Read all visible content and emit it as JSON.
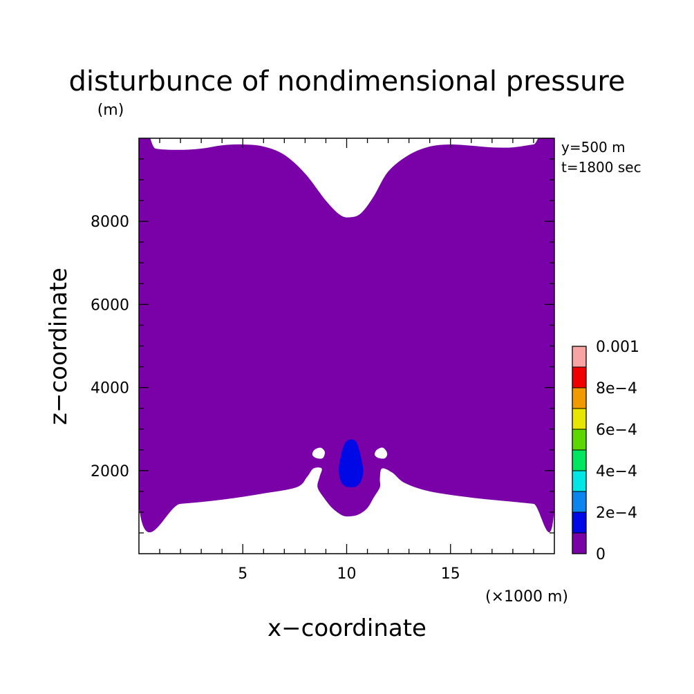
{
  "chart_data": {
    "type": "contour",
    "title": "disturbunce of nondimensional pressure",
    "units": "(m)",
    "annotations": [
      "y=500 m",
      "t=1800 sec"
    ],
    "xlabel": "x−coordinate",
    "ylabel": "z−coordinate",
    "x_unit_note": "(×1000 m)",
    "xlim": [
      0,
      20
    ],
    "ylim": [
      0,
      10000
    ],
    "x_ticks": [
      5,
      10,
      15
    ],
    "x_tick_labels": [
      "5",
      "10",
      "15"
    ],
    "y_ticks": [
      2000,
      4000,
      6000,
      8000
    ],
    "y_tick_labels": [
      "2000",
      "4000",
      "6000",
      "8000"
    ],
    "colorbar": {
      "levels": [
        0,
        0.0001,
        0.0002,
        0.0003,
        0.0004,
        0.0005,
        0.0006,
        0.0007,
        0.0008,
        0.0009,
        0.001
      ],
      "labels": [
        "0",
        "2e−4",
        "4e−4",
        "6e−4",
        "8e−4",
        "0.001"
      ],
      "label_levels": [
        0,
        0.0002,
        0.0004,
        0.0006,
        0.0008,
        0.001
      ],
      "colors": [
        "#7a00a8",
        "#0008e6",
        "#0a84ee",
        "#00e6e6",
        "#00e660",
        "#5ed600",
        "#e6e600",
        "#f09a00",
        "#f00000",
        "#f8a4a4"
      ]
    },
    "regions": [
      {
        "name": "0 to 1e-4",
        "color": "#7a00a8",
        "path": [
          [
            0,
            9900.0
          ],
          [
            0.8,
            9750.0
          ],
          [
            2,
            9720.0
          ],
          [
            3,
            9750.0
          ],
          [
            4,
            9830.0
          ],
          [
            5,
            9850.0
          ],
          [
            6,
            9800.0
          ],
          [
            7,
            9600.0
          ],
          [
            8,
            9150.0
          ],
          [
            9,
            8500.0
          ],
          [
            9.7,
            8150.0
          ],
          [
            10.2,
            8100.0
          ],
          [
            10.7,
            8200.0
          ],
          [
            11.3,
            8600.0
          ],
          [
            12,
            9200.0
          ],
          [
            13,
            9600.0
          ],
          [
            14,
            9800.0
          ],
          [
            15,
            9850.0
          ],
          [
            16,
            9820.0
          ],
          [
            17,
            9780.0
          ],
          [
            18,
            9780.0
          ],
          [
            19,
            9850.0
          ],
          [
            20,
            9900.0
          ],
          [
            20,
            1150.0
          ],
          [
            19,
            1200.0
          ],
          [
            18,
            1250.0
          ],
          [
            16,
            1350.0
          ],
          [
            14,
            1500.0
          ],
          [
            12.8,
            1700.0
          ],
          [
            12.2,
            1950.0
          ],
          [
            11.7,
            2050.0
          ],
          [
            11.6,
            1800.0
          ],
          [
            11.6,
            1600.0
          ],
          [
            11.3,
            1350.0
          ],
          [
            11,
            1100.0
          ],
          [
            10.6,
            950.0
          ],
          [
            10.2,
            900.0
          ],
          [
            9.8,
            920.0
          ],
          [
            9.3,
            1100.0
          ],
          [
            8.9,
            1350.0
          ],
          [
            8.6,
            1600.0
          ],
          [
            8.7,
            1850.0
          ],
          [
            8.8,
            2050.0
          ],
          [
            8.4,
            2050.0
          ],
          [
            8.1,
            1850.0
          ],
          [
            7.6,
            1600.0
          ],
          [
            6,
            1450.0
          ],
          [
            4,
            1300.0
          ],
          [
            2,
            1200.0
          ],
          [
            0,
            1150.0
          ]
        ]
      },
      {
        "name": "1e-4 to 2e-4",
        "color": "#0008e6",
        "path": [
          [
            10.2,
            2750.0
          ],
          [
            10.45,
            2700.0
          ],
          [
            10.6,
            2500.0
          ],
          [
            10.72,
            2250.0
          ],
          [
            10.8,
            2000.0
          ],
          [
            10.72,
            1780.0
          ],
          [
            10.5,
            1630.0
          ],
          [
            10.15,
            1600.0
          ],
          [
            9.85,
            1650.0
          ],
          [
            9.68,
            1800.0
          ],
          [
            9.62,
            2050.0
          ],
          [
            9.7,
            2300.0
          ],
          [
            9.82,
            2550.0
          ],
          [
            9.98,
            2700.0
          ]
        ]
      },
      {
        "name": "hole-left",
        "color": "#ffffff",
        "path": [
          [
            8.45,
            2500.0
          ],
          [
            8.75,
            2550.0
          ],
          [
            8.95,
            2450.0
          ],
          [
            8.85,
            2300.0
          ],
          [
            8.55,
            2300.0
          ],
          [
            8.35,
            2380.0
          ]
        ]
      },
      {
        "name": "hole-right",
        "color": "#ffffff",
        "path": [
          [
            11.45,
            2500.0
          ],
          [
            11.75,
            2550.0
          ],
          [
            11.95,
            2420.0
          ],
          [
            11.85,
            2300.0
          ],
          [
            11.55,
            2300.0
          ],
          [
            11.35,
            2380.0
          ]
        ]
      }
    ]
  }
}
